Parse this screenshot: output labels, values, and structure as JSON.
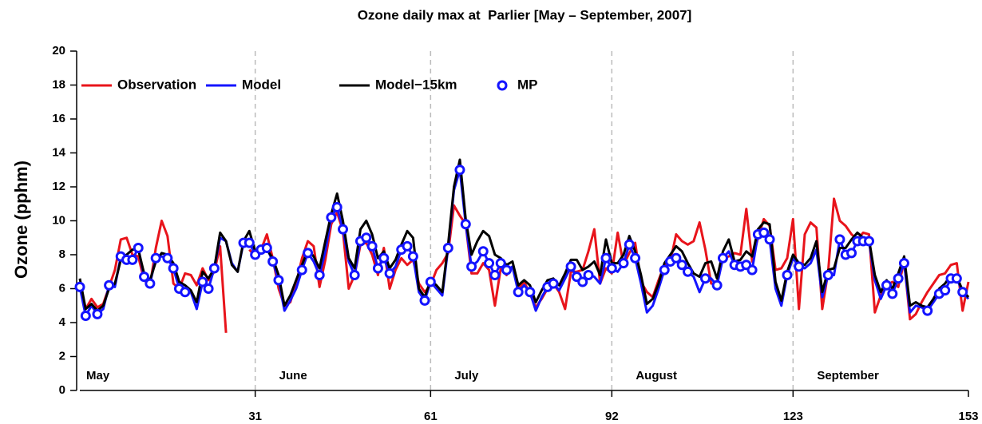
{
  "chart_data": {
    "type": "line",
    "title": "Ozone daily max at  Parlier [May – September, 2007]",
    "y_label": "Ozone (pphm)",
    "month_labels": [
      "May",
      "June",
      "July",
      "August",
      "September"
    ],
    "xlim": [
      1,
      153
    ],
    "xticks": [
      31,
      61,
      92,
      123,
      153
    ],
    "ylim": [
      0,
      20
    ],
    "yticks": [
      0,
      2,
      4,
      6,
      8,
      10,
      12,
      14,
      16,
      18,
      20
    ],
    "month_grid": true,
    "x": [
      1,
      2,
      3,
      4,
      5,
      6,
      7,
      8,
      9,
      10,
      11,
      12,
      13,
      14,
      15,
      16,
      17,
      18,
      19,
      20,
      21,
      22,
      23,
      24,
      25,
      26,
      27,
      28,
      29,
      30,
      31,
      32,
      33,
      34,
      35,
      36,
      37,
      38,
      39,
      40,
      41,
      42,
      43,
      44,
      45,
      46,
      47,
      48,
      49,
      50,
      51,
      52,
      53,
      54,
      55,
      56,
      57,
      58,
      59,
      60,
      61,
      62,
      63,
      64,
      65,
      66,
      67,
      68,
      69,
      70,
      71,
      72,
      73,
      74,
      75,
      76,
      77,
      78,
      79,
      80,
      81,
      82,
      83,
      84,
      85,
      86,
      87,
      88,
      89,
      90,
      91,
      92,
      93,
      94,
      95,
      96,
      97,
      98,
      99,
      100,
      101,
      102,
      103,
      104,
      105,
      106,
      107,
      108,
      109,
      110,
      111,
      112,
      113,
      114,
      115,
      116,
      117,
      118,
      119,
      120,
      121,
      122,
      123,
      124,
      125,
      126,
      127,
      128,
      129,
      130,
      131,
      132,
      133,
      134,
      135,
      136,
      137,
      138,
      139,
      140,
      141,
      142,
      143,
      144,
      145,
      146,
      147,
      148,
      149,
      150,
      151,
      152,
      153
    ],
    "series": [
      {
        "name": "Observation",
        "color": "#e8141b",
        "mode": "lines",
        "values": [
          6.2,
          4.8,
          5.4,
          4.9,
          5.1,
          6.1,
          7.1,
          8.9,
          9.0,
          8.0,
          7.9,
          6.5,
          6.2,
          8.4,
          10.0,
          9.1,
          6.3,
          6.0,
          6.9,
          6.8,
          6.2,
          7.2,
          6.5,
          7.0,
          8.5,
          3.4,
          null,
          null,
          null,
          8.3,
          7.9,
          8.3,
          9.2,
          7.8,
          6.0,
          5.0,
          5.2,
          6.3,
          7.8,
          8.8,
          8.5,
          6.1,
          7.7,
          9.8,
          10.5,
          9.4,
          6.0,
          6.8,
          8.6,
          8.7,
          8.0,
          6.8,
          8.4,
          6.0,
          7.1,
          7.8,
          7.4,
          7.7,
          6.3,
          5.8,
          6.2,
          7.1,
          7.5,
          8.1,
          10.9,
          10.3,
          9.8,
          6.9,
          6.9,
          7.5,
          7.1,
          5.0,
          7.2,
          6.8,
          7.3,
          6.0,
          6.4,
          5.7,
          4.9,
          5.4,
          6.0,
          6.3,
          5.8,
          4.8,
          7.0,
          7.0,
          7.1,
          8.2,
          9.5,
          6.3,
          7.2,
          6.9,
          9.3,
          7.4,
          8.1,
          8.7,
          6.4,
          5.8,
          5.5,
          6.5,
          7.4,
          7.6,
          9.2,
          8.8,
          8.6,
          8.8,
          9.9,
          8.3,
          6.3,
          6.3,
          7.8,
          7.9,
          8.1,
          8.0,
          10.7,
          7.6,
          9.0,
          10.1,
          9.7,
          7.1,
          7.2,
          7.8,
          10.1,
          4.8,
          9.2,
          9.9,
          9.6,
          4.8,
          7.0,
          11.3,
          10.0,
          9.7,
          9.2,
          8.9,
          9.3,
          9.2,
          4.6,
          5.6,
          6.2,
          6.4,
          6.1,
          7.6,
          4.2,
          4.5,
          5.2,
          5.8,
          6.3,
          6.8,
          6.9,
          7.4,
          7.5,
          4.7,
          6.4
        ]
      },
      {
        "name": "Model",
        "color": "#1414ff",
        "mode": "lines",
        "values": [
          6.1,
          4.4,
          5.0,
          4.5,
          4.8,
          6.2,
          6.1,
          7.9,
          7.7,
          7.7,
          8.4,
          6.7,
          6.3,
          7.8,
          7.9,
          7.8,
          7.2,
          6.0,
          5.8,
          5.8,
          4.8,
          6.4,
          6.0,
          7.2,
          9.0,
          8.8,
          7.5,
          7.0,
          8.7,
          8.7,
          8.0,
          8.3,
          8.4,
          7.6,
          6.5,
          4.7,
          5.3,
          6.0,
          7.1,
          8.1,
          7.6,
          6.8,
          8.2,
          10.2,
          10.8,
          9.5,
          7.6,
          6.8,
          8.8,
          9.0,
          8.5,
          7.2,
          7.8,
          6.9,
          7.3,
          8.3,
          8.5,
          7.9,
          5.8,
          5.3,
          6.4,
          6.0,
          5.6,
          8.4,
          11.8,
          13.0,
          9.8,
          7.3,
          7.6,
          8.2,
          7.5,
          6.8,
          7.5,
          7.1,
          7.3,
          5.8,
          6.2,
          5.8,
          4.7,
          5.5,
          6.1,
          6.3,
          5.9,
          6.6,
          7.3,
          6.7,
          6.4,
          6.8,
          6.7,
          6.3,
          7.8,
          7.2,
          7.0,
          7.5,
          8.6,
          7.8,
          6.3,
          4.6,
          5.0,
          6.0,
          7.1,
          7.6,
          7.8,
          7.4,
          7.0,
          6.7,
          5.8,
          6.6,
          6.6,
          6.2,
          7.8,
          8.2,
          7.4,
          7.3,
          7.4,
          7.1,
          9.2,
          9.3,
          8.9,
          6.0,
          5.0,
          6.8,
          7.8,
          7.3,
          7.2,
          7.5,
          8.3,
          5.5,
          6.8,
          6.8,
          8.9,
          8.0,
          8.1,
          8.8,
          8.8,
          8.8,
          6.5,
          5.4,
          6.2,
          5.7,
          6.6,
          7.5,
          4.6,
          5.0,
          4.9,
          4.7,
          5.2,
          5.7,
          5.9,
          6.6,
          6.6,
          5.8,
          5.4
        ]
      },
      {
        "name": "Model−15km",
        "color": "#000000",
        "mode": "lines",
        "values": [
          6.6,
          4.8,
          5.1,
          4.7,
          5.0,
          6.0,
          6.3,
          7.7,
          8.0,
          8.3,
          8.3,
          6.9,
          6.5,
          7.6,
          8.1,
          8.0,
          7.5,
          6.4,
          6.2,
          5.9,
          5.2,
          7.0,
          6.6,
          7.2,
          9.3,
          8.8,
          7.4,
          7.0,
          8.8,
          9.4,
          8.2,
          8.4,
          8.3,
          7.8,
          6.8,
          5.0,
          5.6,
          6.5,
          7.4,
          8.3,
          7.9,
          7.2,
          8.8,
          10.4,
          11.6,
          10.0,
          7.8,
          7.2,
          9.5,
          10.0,
          9.2,
          7.8,
          8.2,
          7.2,
          7.7,
          8.6,
          9.4,
          9.0,
          6.0,
          5.5,
          6.5,
          6.2,
          5.8,
          8.6,
          12.0,
          13.6,
          10.1,
          8.0,
          8.8,
          9.4,
          9.1,
          8.0,
          7.8,
          7.4,
          7.6,
          6.2,
          6.5,
          6.2,
          5.2,
          5.9,
          6.5,
          6.6,
          6.2,
          6.9,
          7.7,
          7.7,
          7.1,
          7.3,
          7.6,
          6.8,
          8.9,
          7.5,
          7.5,
          8.0,
          9.1,
          8.2,
          6.8,
          5.1,
          5.4,
          6.3,
          7.5,
          8.0,
          8.5,
          8.2,
          7.5,
          6.9,
          6.7,
          7.5,
          7.6,
          6.6,
          8.2,
          8.9,
          7.6,
          7.7,
          8.2,
          7.9,
          9.5,
          9.9,
          9.8,
          6.4,
          5.3,
          7.0,
          8.0,
          7.5,
          7.4,
          7.8,
          8.8,
          5.8,
          7.1,
          7.2,
          8.4,
          8.4,
          8.9,
          9.3,
          9.0,
          8.9,
          6.8,
          5.8,
          6.5,
          6.0,
          6.9,
          7.9,
          5.0,
          5.2,
          5.0,
          4.9,
          5.4,
          6.0,
          6.3,
          6.8,
          6.7,
          5.9,
          5.5
        ]
      },
      {
        "name": "MP",
        "color": "#1414ff",
        "mode": "markers",
        "values": [
          6.1,
          4.4,
          null,
          4.5,
          null,
          6.2,
          null,
          7.9,
          7.7,
          7.7,
          8.4,
          6.7,
          6.3,
          7.8,
          null,
          7.8,
          7.2,
          6.0,
          5.8,
          null,
          null,
          6.4,
          6.0,
          7.2,
          null,
          null,
          null,
          null,
          8.7,
          8.7,
          8.0,
          8.3,
          8.4,
          7.6,
          6.5,
          null,
          null,
          null,
          7.1,
          8.1,
          null,
          6.8,
          null,
          10.2,
          10.8,
          9.5,
          null,
          6.8,
          8.8,
          9.0,
          8.5,
          7.2,
          7.8,
          6.9,
          null,
          8.3,
          8.5,
          7.9,
          null,
          5.3,
          6.4,
          null,
          null,
          8.4,
          null,
          13.0,
          9.8,
          7.3,
          null,
          8.2,
          7.5,
          6.8,
          7.5,
          7.1,
          null,
          5.8,
          null,
          5.8,
          null,
          null,
          6.1,
          6.3,
          null,
          null,
          7.3,
          6.7,
          6.4,
          6.8,
          null,
          null,
          7.8,
          7.2,
          null,
          7.5,
          8.6,
          7.8,
          null,
          null,
          null,
          null,
          7.1,
          7.6,
          7.8,
          7.4,
          7.0,
          null,
          null,
          6.6,
          null,
          6.2,
          7.8,
          null,
          7.4,
          7.3,
          7.4,
          7.1,
          9.2,
          9.3,
          8.9,
          null,
          null,
          6.8,
          null,
          7.3,
          null,
          null,
          null,
          null,
          6.8,
          null,
          8.9,
          8.0,
          8.1,
          8.8,
          8.8,
          8.8,
          null,
          null,
          6.2,
          5.7,
          6.6,
          7.5,
          null,
          null,
          null,
          4.7,
          null,
          5.7,
          5.9,
          6.6,
          6.6,
          5.8,
          null
        ]
      }
    ]
  }
}
